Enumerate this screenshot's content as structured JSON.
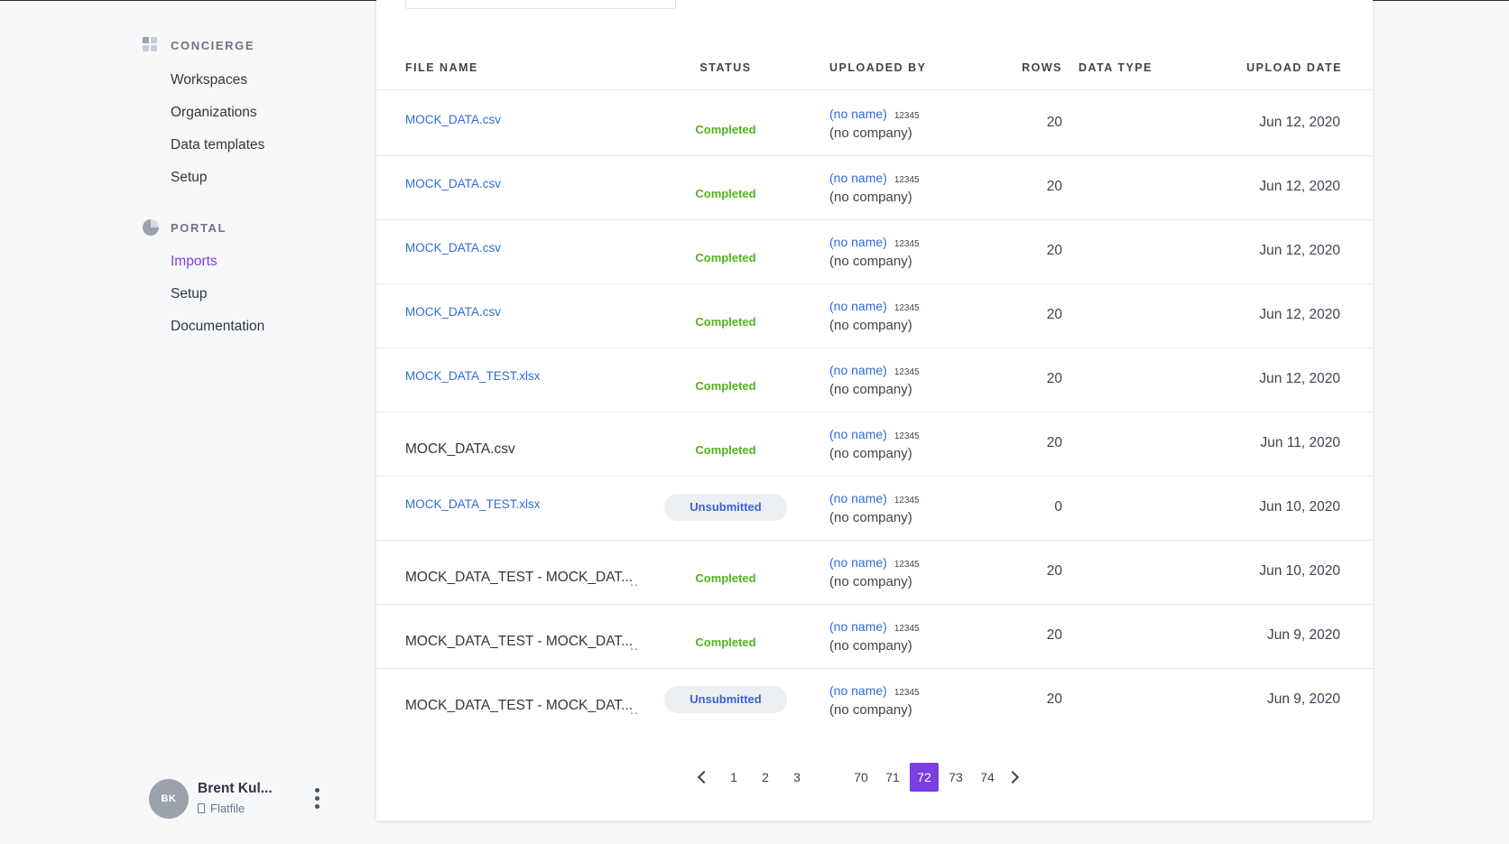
{
  "sidebar": {
    "sections": [
      {
        "label": "CONCIERGE",
        "items": [
          "Workspaces",
          "Organizations",
          "Data templates",
          "Setup"
        ]
      },
      {
        "label": "PORTAL",
        "items": [
          "Imports",
          "Setup",
          "Documentation"
        ]
      }
    ],
    "active_item": "Imports",
    "user": {
      "initials": "BK",
      "name": "Brent Kul...",
      "org": "Flatfile"
    }
  },
  "table": {
    "headers": [
      "FILE NAME",
      "STATUS",
      "UPLOADED BY",
      "ROWS",
      "DATA TYPE",
      "UPLOAD DATE"
    ],
    "rows": [
      {
        "file": "MOCK_DATA.csv",
        "status": "Completed",
        "uploader": "(no name)",
        "uploader_id": "12345",
        "company": "(no company)",
        "rows": "20",
        "data_type": "",
        "date": "Jun 12, 2020"
      },
      {
        "file": "MOCK_DATA.csv",
        "status": "Completed",
        "uploader": "(no name)",
        "uploader_id": "12345",
        "company": "(no company)",
        "rows": "20",
        "data_type": "",
        "date": "Jun 12, 2020"
      },
      {
        "file": "MOCK_DATA.csv",
        "status": "Completed",
        "uploader": "(no name)",
        "uploader_id": "12345",
        "company": "(no company)",
        "rows": "20",
        "data_type": "",
        "date": "Jun 12, 2020"
      },
      {
        "file": "MOCK_DATA.csv",
        "status": "Completed",
        "uploader": "(no name)",
        "uploader_id": "12345",
        "company": "(no company)",
        "rows": "20",
        "data_type": "",
        "date": "Jun 12, 2020"
      },
      {
        "file": "MOCK_DATA_TEST.xlsx",
        "status": "Completed",
        "uploader": "(no name)",
        "uploader_id": "12345",
        "company": "(no company)",
        "rows": "20",
        "data_type": "",
        "date": "Jun 12, 2020"
      },
      {
        "file": "MOCK_DATA.csv",
        "status": "Completed",
        "uploader": "(no name)",
        "uploader_id": "12345",
        "company": "(no company)",
        "rows": "20",
        "data_type": "",
        "date": "Jun 11, 2020"
      },
      {
        "file": "MOCK_DATA_TEST.xlsx",
        "status": "Unsubmitted",
        "uploader": "(no name)",
        "uploader_id": "12345",
        "company": "(no company)",
        "rows": "0",
        "data_type": "",
        "date": "Jun 10, 2020"
      },
      {
        "file": "MOCK_DATA_TEST - MOCK_DAT...",
        "status": "Completed",
        "uploader": "(no name)",
        "uploader_id": "12345",
        "company": "(no company)",
        "rows": "20",
        "data_type": "",
        "date": "Jun 10, 2020"
      },
      {
        "file": "MOCK_DATA_TEST - MOCK_DAT...",
        "status": "Completed",
        "uploader": "(no name)",
        "uploader_id": "12345",
        "company": "(no company)",
        "rows": "20",
        "data_type": "",
        "date": "Jun 9, 2020"
      },
      {
        "file": "MOCK_DATA_TEST - MOCK_DAT...",
        "status": "Unsubmitted",
        "uploader": "(no name)",
        "uploader_id": "12345",
        "company": "(no company)",
        "rows": "20",
        "data_type": "",
        "date": "Jun 9, 2020"
      }
    ],
    "truncation_marker": ".."
  },
  "pagination": {
    "pages": [
      "1",
      "2",
      "3",
      "70",
      "71",
      "72",
      "73",
      "74"
    ],
    "current": "72"
  },
  "colors": {
    "accent": "#7b3fe4",
    "link": "#2f6bd8",
    "completed": "#52b31e",
    "unsubmitted": "#3d65c9",
    "unsubmitted_bg": "#ebeef3"
  },
  "icons": [
    "grid-icon",
    "pie-chart-icon",
    "building-icon",
    "kebab-menu-icon",
    "chevron-left-icon",
    "chevron-right-icon"
  ]
}
